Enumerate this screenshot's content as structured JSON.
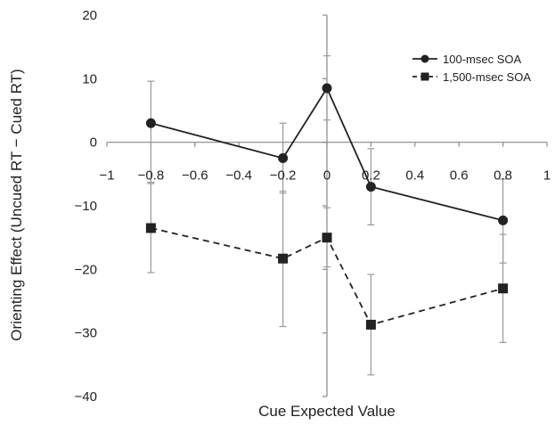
{
  "chart_data": {
    "type": "line",
    "title": "",
    "xlabel": "Cue Expected Value",
    "ylabel": "Orienting Effect (Uncued RT − Cued RT)",
    "xlim": [
      -1,
      1
    ],
    "ylim": [
      -40,
      20
    ],
    "x_ticks": [
      -1,
      -0.8,
      -0.6,
      -0.4,
      -0.2,
      0,
      0.2,
      0.4,
      0.6,
      0.8,
      1
    ],
    "x_tick_labels": [
      "−1",
      "−0.8",
      "−0.6",
      "−0.4",
      "−0.2",
      "0",
      "0.2",
      "0.4",
      "0.6",
      "0.8",
      "1"
    ],
    "y_ticks": [
      -40,
      -30,
      -20,
      -10,
      0,
      10,
      20
    ],
    "y_tick_labels": [
      "−40",
      "−30",
      "−20",
      "−10",
      "0",
      "10",
      "20"
    ],
    "grid": false,
    "legend_position": "top-right",
    "series": [
      {
        "name": "100-msec SOA",
        "marker": "circle",
        "line_style": "solid",
        "color": "#222222",
        "x": [
          -0.8,
          -0.2,
          0,
          0.2,
          0.8
        ],
        "y": [
          3,
          -2.5,
          8.5,
          -7,
          -12.3
        ],
        "err_low": [
          -6.3,
          -8,
          3.5,
          -13,
          -19
        ],
        "err_high": [
          9.6,
          3,
          13.6,
          -1,
          -5.8
        ]
      },
      {
        "name": "1,500-msec SOA",
        "marker": "square",
        "line_style": "dashed",
        "color": "#222222",
        "x": [
          -0.8,
          -0.2,
          0,
          0.2,
          0.8
        ],
        "y": [
          -13.5,
          -18.3,
          -15,
          -28.7,
          -23
        ],
        "err_low": [
          -20.5,
          -29,
          -19.6,
          -36.6,
          -31.5
        ],
        "err_high": [
          -6.5,
          -7.7,
          -10.3,
          -20.8,
          -14.5
        ]
      }
    ]
  }
}
